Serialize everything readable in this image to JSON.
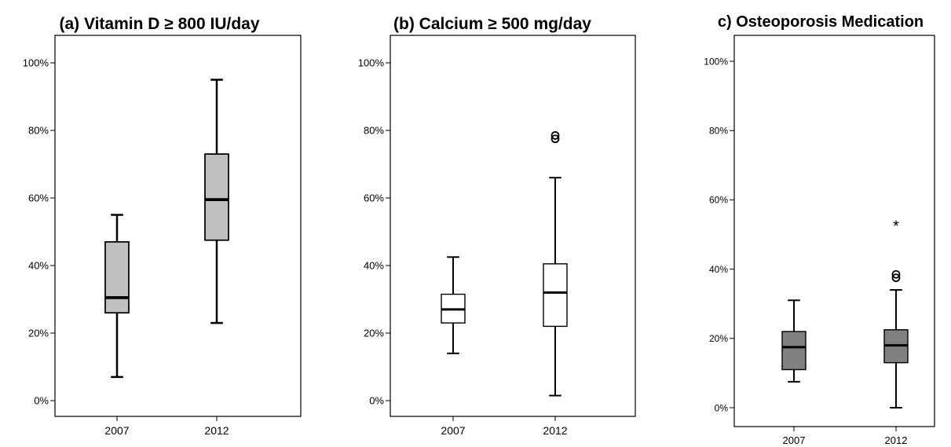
{
  "chart_data": [
    {
      "type": "boxplot",
      "title": "(a) Vitamin D ≥ 800 IU/day",
      "categories": [
        "2007",
        "2012"
      ],
      "yticks": [
        "0%",
        "20%",
        "40%",
        "60%",
        "80%",
        "100%"
      ],
      "ylim": [
        0,
        100
      ],
      "box_color": "#c0c0c0",
      "boxes": [
        {
          "min": 7,
          "q1": 26,
          "median": 30.5,
          "q3": 47,
          "max": 55,
          "outliers": [],
          "extremes": []
        },
        {
          "min": 23,
          "q1": 47.5,
          "median": 59.5,
          "q3": 73,
          "max": 95,
          "outliers": [],
          "extremes": []
        }
      ]
    },
    {
      "type": "boxplot",
      "title": "(b) Calcium ≥ 500 mg/day",
      "categories": [
        "2007",
        "2012"
      ],
      "yticks": [
        "0%",
        "20%",
        "40%",
        "60%",
        "80%",
        "100%"
      ],
      "ylim": [
        0,
        100
      ],
      "box_color": "#ffffff",
      "boxes": [
        {
          "min": 14,
          "q1": 23,
          "median": 27,
          "q3": 31.5,
          "max": 42.5,
          "outliers": [],
          "extremes": []
        },
        {
          "min": 1.5,
          "q1": 22,
          "median": 32,
          "q3": 40.5,
          "max": 66,
          "outliers": [
            77.5,
            78.5
          ],
          "extremes": []
        }
      ]
    },
    {
      "type": "boxplot",
      "title": "c) Osteoporosis Medication",
      "categories": [
        "2007",
        "2012"
      ],
      "yticks": [
        "0%",
        "20%",
        "40%",
        "60%",
        "80%",
        "100%"
      ],
      "ylim": [
        0,
        100
      ],
      "box_color": "#808080",
      "boxes": [
        {
          "min": 7.5,
          "q1": 11,
          "median": 17.5,
          "q3": 22,
          "max": 31,
          "outliers": [],
          "extremes": []
        },
        {
          "min": 0,
          "q1": 13,
          "median": 18,
          "q3": 22.5,
          "max": 34,
          "outliers": [
            37.5,
            38.5
          ],
          "extremes": [
            53
          ]
        }
      ]
    }
  ]
}
